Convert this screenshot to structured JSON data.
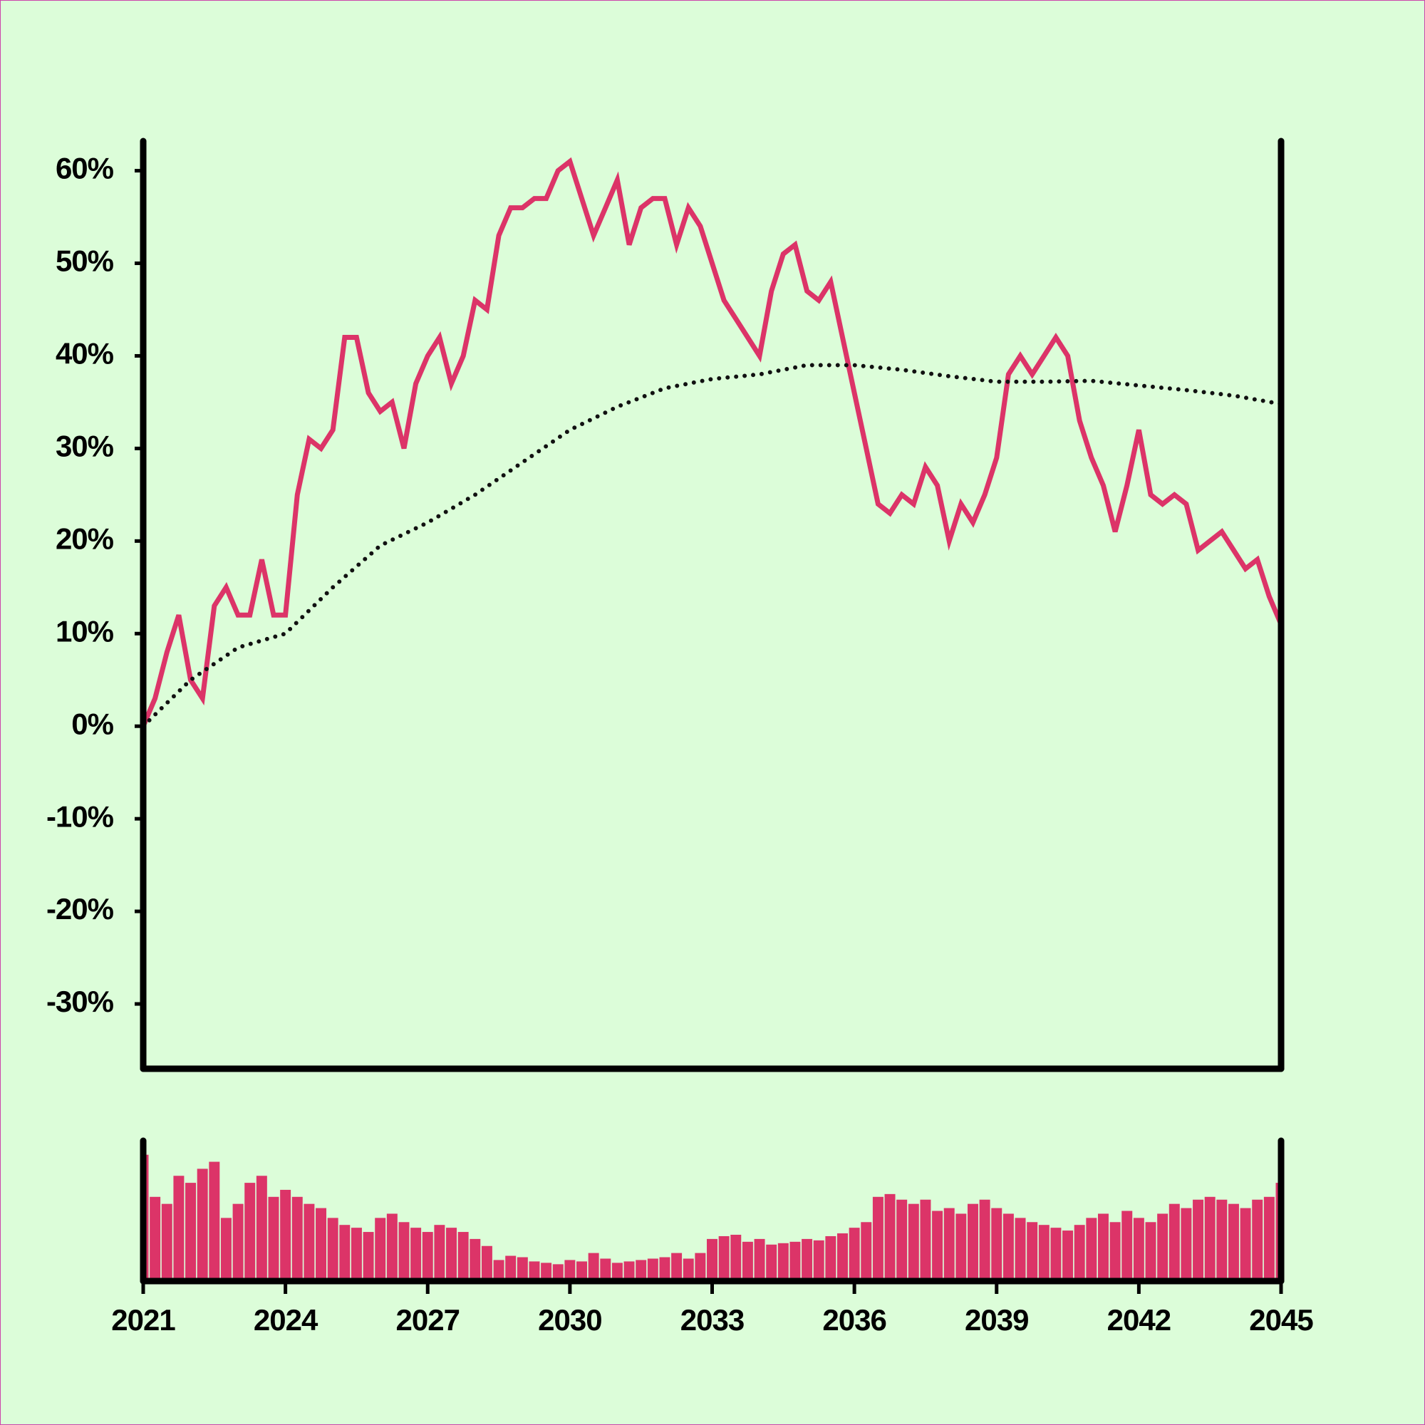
{
  "chart_data": [
    {
      "type": "line",
      "x": [
        2021,
        2021.25,
        2021.5,
        2021.75,
        2022,
        2022.25,
        2022.5,
        2022.75,
        2023,
        2023.25,
        2023.5,
        2023.75,
        2024,
        2024.25,
        2024.5,
        2024.75,
        2025,
        2025.25,
        2025.5,
        2025.75,
        2026,
        2026.25,
        2026.5,
        2026.75,
        2027,
        2027.25,
        2027.5,
        2027.75,
        2028,
        2028.25,
        2028.5,
        2028.75,
        2029,
        2029.25,
        2029.5,
        2029.75,
        2030,
        2030.25,
        2030.5,
        2030.75,
        2031,
        2031.25,
        2031.5,
        2031.75,
        2032,
        2032.25,
        2032.5,
        2032.75,
        2033,
        2033.25,
        2033.5,
        2033.75,
        2034,
        2034.25,
        2034.5,
        2034.75,
        2035,
        2035.25,
        2035.5,
        2035.75,
        2036,
        2036.25,
        2036.5,
        2036.75,
        2037,
        2037.25,
        2037.5,
        2037.75,
        2038,
        2038.25,
        2038.5,
        2038.75,
        2039,
        2039.25,
        2039.5,
        2039.75,
        2040,
        2040.25,
        2040.5,
        2040.75,
        2041,
        2041.25,
        2041.5,
        2041.75,
        2042,
        2042.25,
        2042.5,
        2042.75,
        2043,
        2043.25,
        2043.5,
        2043.75,
        2044,
        2044.25,
        2044.5,
        2044.75,
        2045
      ],
      "series": [
        {
          "color": "#dc3468",
          "values": [
            0,
            3,
            8,
            12,
            5,
            3,
            13,
            15,
            12,
            12,
            18,
            12,
            12,
            25,
            31,
            30,
            32,
            42,
            42,
            36,
            34,
            35,
            30,
            37,
            40,
            42,
            37,
            40,
            46,
            45,
            53,
            56,
            56,
            57,
            57,
            60,
            61,
            57,
            53,
            56,
            59,
            52,
            56,
            57,
            57,
            52,
            56,
            54,
            50,
            46,
            44,
            42,
            40,
            47,
            51,
            52,
            47,
            46,
            48,
            42,
            36,
            30,
            24,
            23,
            25,
            24,
            28,
            26,
            20,
            24,
            22,
            25,
            29,
            38,
            40,
            38,
            40,
            42,
            40,
            33,
            29,
            26,
            21,
            26,
            32,
            25,
            24,
            25,
            24,
            19,
            20,
            21,
            19,
            17,
            18,
            14,
            11
          ]
        },
        {
          "color": "#111111",
          "style": "dotted",
          "x": [
            2021,
            2022,
            2023,
            2024,
            2025,
            2026,
            2027,
            2028,
            2029,
            2030,
            2031,
            2032,
            2033,
            2034,
            2035,
            2036,
            2037,
            2038,
            2039,
            2040,
            2041,
            2042,
            2043,
            2044,
            2045
          ],
          "values": [
            0,
            5,
            8.5,
            10,
            15,
            19.5,
            22,
            25,
            28.5,
            32,
            34.5,
            36.5,
            37.5,
            38,
            39,
            39,
            38.5,
            37.8,
            37.2,
            37.2,
            37.3,
            36.8,
            36.3,
            35.7,
            34.8
          ]
        }
      ],
      "xlim": [
        2021,
        2045
      ],
      "ylim": [
        -37,
        63.2
      ],
      "yticks": [
        {
          "value": -30,
          "label": "-30%"
        },
        {
          "value": -20,
          "label": "-20%"
        },
        {
          "value": -10,
          "label": "-10%"
        },
        {
          "value": 0,
          "label": "0%"
        },
        {
          "value": 10,
          "label": "10%"
        },
        {
          "value": 20,
          "label": "20%"
        },
        {
          "value": 30,
          "label": "30%"
        },
        {
          "value": 40,
          "label": "40%"
        },
        {
          "value": 50,
          "label": "50%"
        },
        {
          "value": 60,
          "label": "60%"
        }
      ]
    },
    {
      "type": "bar",
      "color": "#dc3468",
      "x": [
        2021,
        2021.25,
        2021.5,
        2021.75,
        2022,
        2022.25,
        2022.5,
        2022.75,
        2023,
        2023.25,
        2023.5,
        2023.75,
        2024,
        2024.25,
        2024.5,
        2024.75,
        2025,
        2025.25,
        2025.5,
        2025.75,
        2026,
        2026.25,
        2026.5,
        2026.75,
        2027,
        2027.25,
        2027.5,
        2027.75,
        2028,
        2028.25,
        2028.5,
        2028.75,
        2029,
        2029.25,
        2029.5,
        2029.75,
        2030,
        2030.25,
        2030.5,
        2030.75,
        2031,
        2031.25,
        2031.5,
        2031.75,
        2032,
        2032.25,
        2032.5,
        2032.75,
        2033,
        2033.25,
        2033.5,
        2033.75,
        2034,
        2034.25,
        2034.5,
        2034.75,
        2035,
        2035.25,
        2035.5,
        2035.75,
        2036,
        2036.25,
        2036.5,
        2036.75,
        2037,
        2037.25,
        2037.5,
        2037.75,
        2038,
        2038.25,
        2038.5,
        2038.75,
        2039,
        2039.25,
        2039.5,
        2039.75,
        2040,
        2040.25,
        2040.5,
        2040.75,
        2041,
        2041.25,
        2041.5,
        2041.75,
        2042,
        2042.25,
        2042.5,
        2042.75,
        2043,
        2043.25,
        2043.5,
        2043.75,
        2044,
        2044.25,
        2044.5,
        2044.75,
        2045
      ],
      "values": [
        90,
        60,
        55,
        75,
        70,
        80,
        85,
        45,
        55,
        70,
        75,
        60,
        65,
        60,
        55,
        52,
        45,
        40,
        38,
        35,
        45,
        48,
        42,
        38,
        35,
        40,
        38,
        35,
        30,
        25,
        15,
        18,
        17,
        14,
        13,
        12,
        15,
        14,
        20,
        16,
        13,
        14,
        15,
        16,
        17,
        20,
        16,
        20,
        30,
        32,
        33,
        28,
        30,
        26,
        27,
        28,
        30,
        29,
        32,
        34,
        38,
        42,
        60,
        62,
        58,
        55,
        58,
        50,
        52,
        48,
        55,
        58,
        52,
        48,
        45,
        42,
        40,
        38,
        36,
        40,
        45,
        48,
        42,
        50,
        45,
        42,
        48,
        55,
        52,
        58,
        60,
        58,
        55,
        52,
        58,
        60,
        70
      ],
      "xlim": [
        2021,
        2045
      ],
      "ylim": [
        0,
        100
      ],
      "xticks": [
        2021,
        2024,
        2027,
        2030,
        2033,
        2036,
        2039,
        2042,
        2045
      ]
    }
  ]
}
